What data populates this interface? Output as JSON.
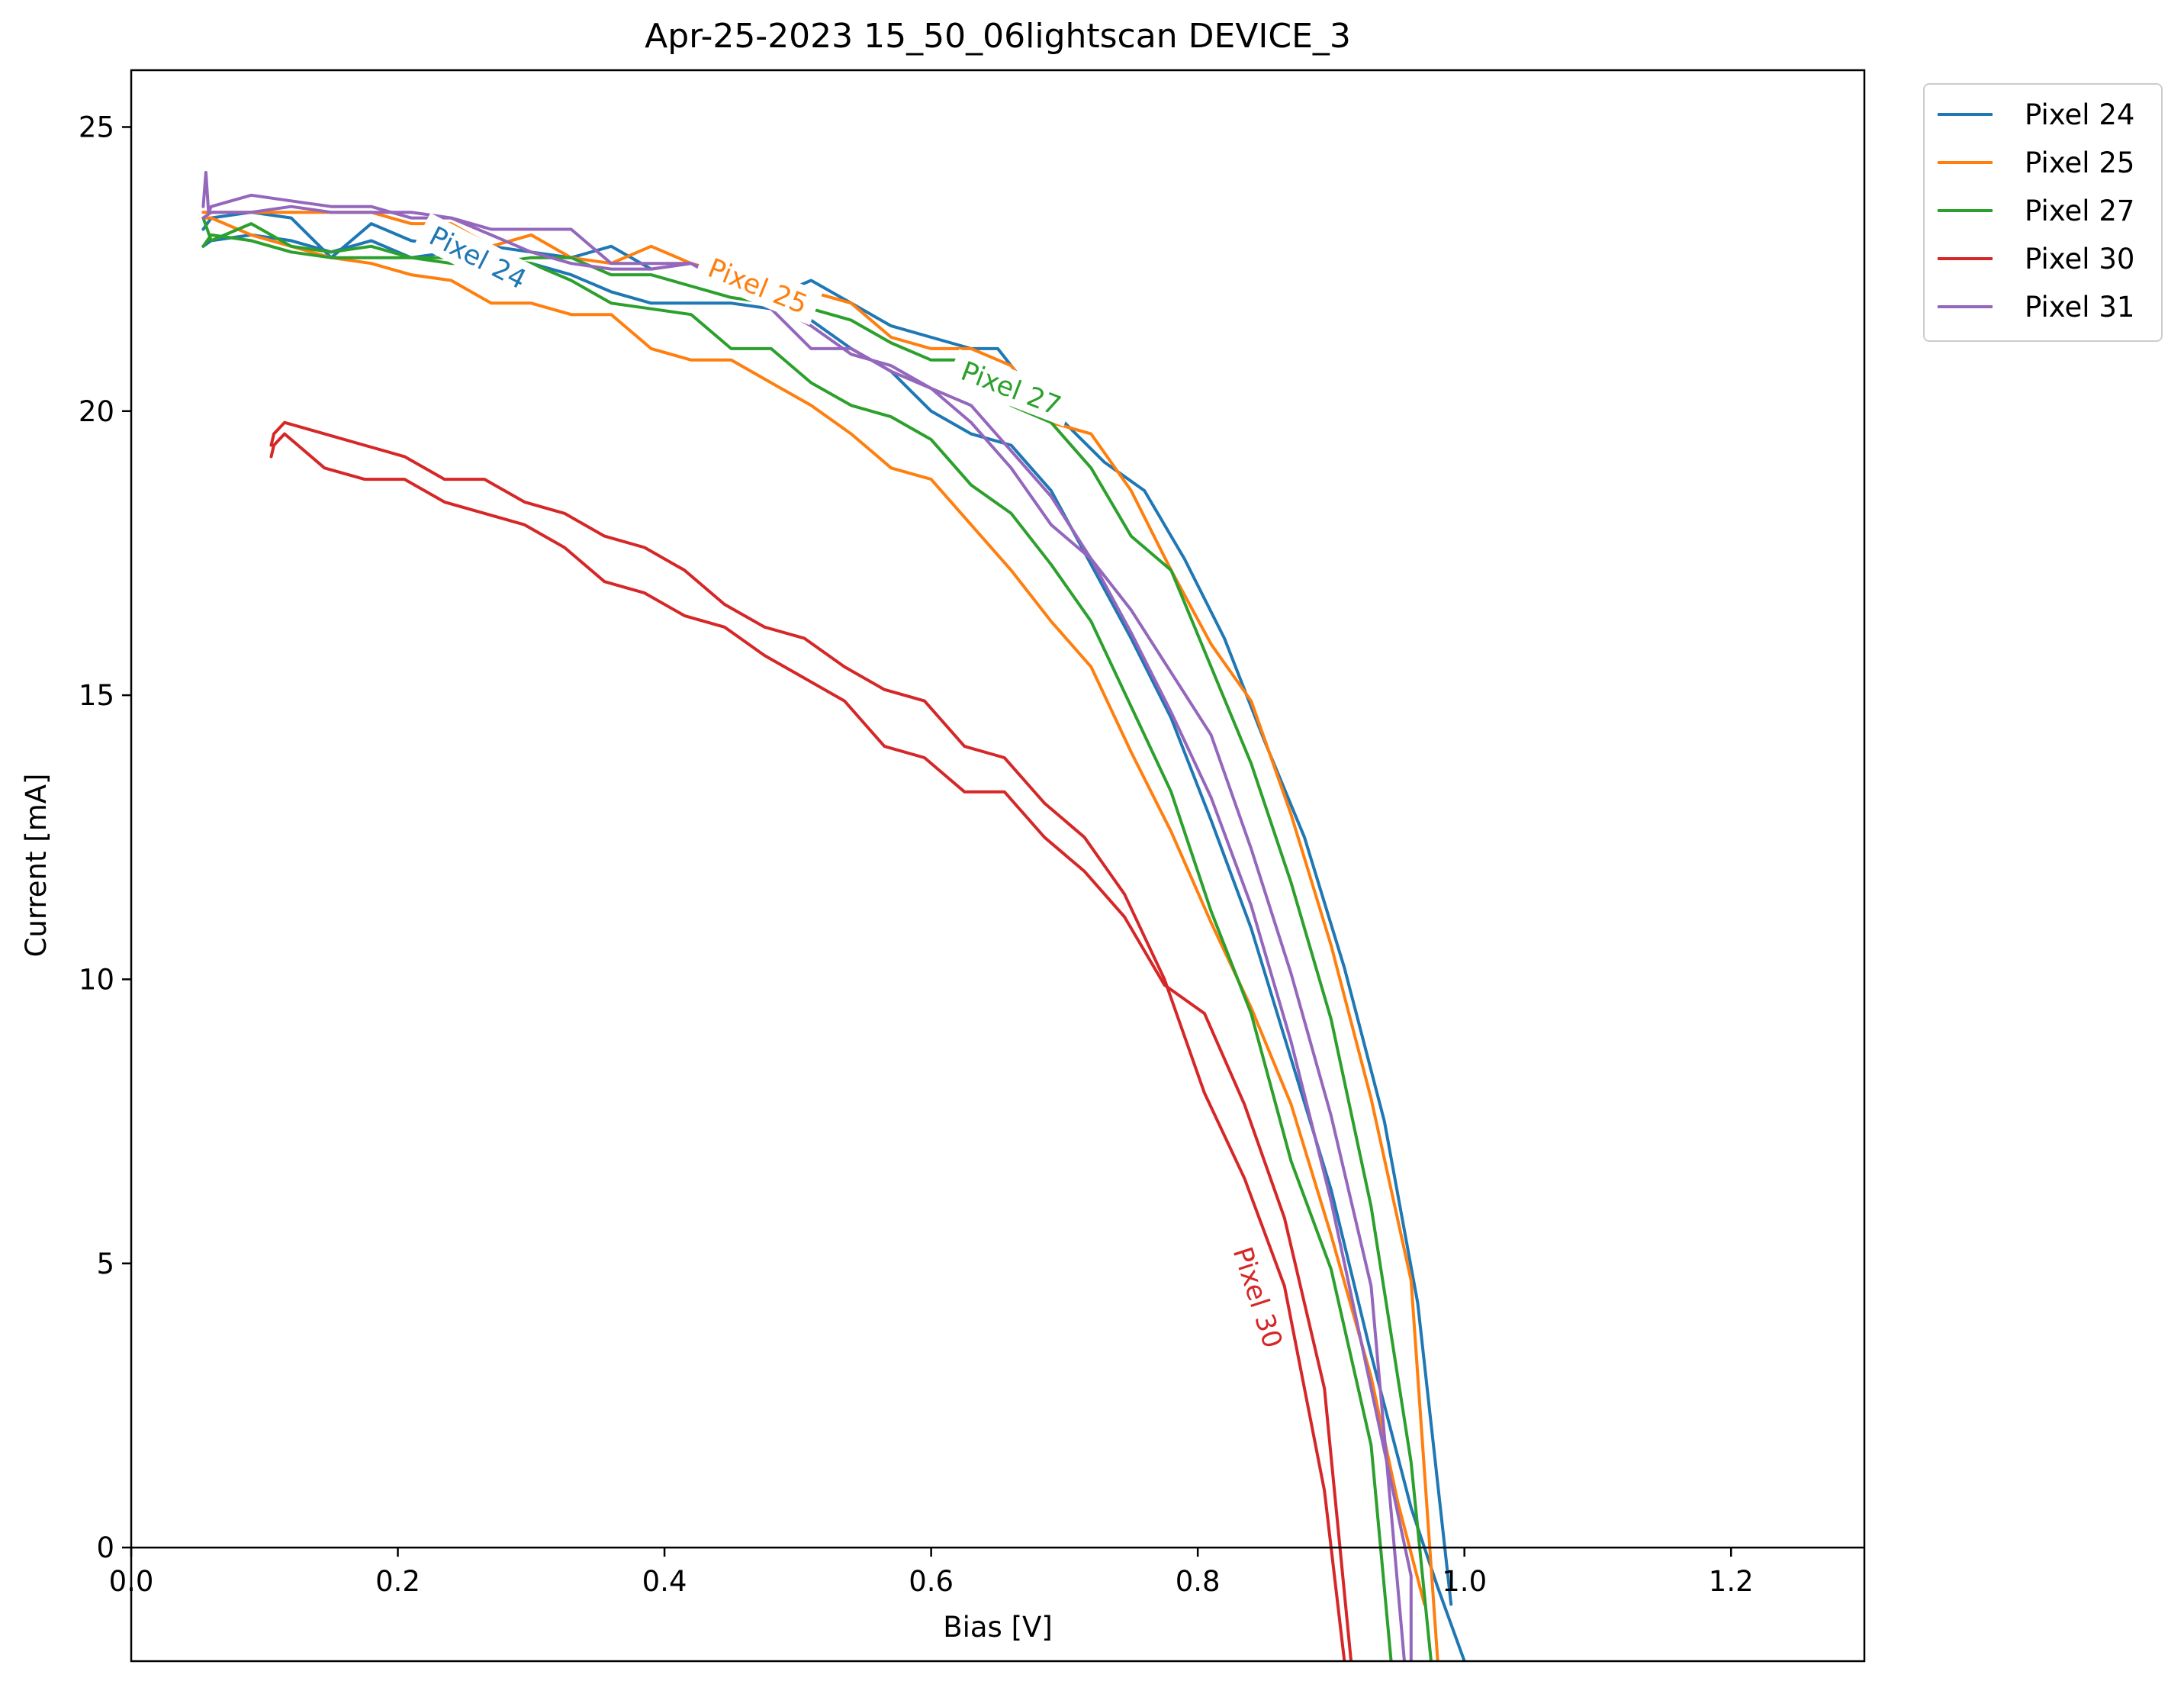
{
  "chart_data": {
    "type": "line",
    "title": "Apr-25-2023 15_50_06lightscan DEVICE_3",
    "xlabel": "Bias [V]",
    "ylabel": "Current [mA]",
    "xlim": [
      0.0,
      1.3
    ],
    "ylim": [
      -2.0,
      26.0
    ],
    "x_ticks": [
      0.0,
      0.2,
      0.4,
      0.6,
      0.8,
      1.0,
      1.2
    ],
    "x_tick_labels": [
      "0.0",
      "0.2",
      "0.4",
      "0.6",
      "0.8",
      "1.0",
      "1.2"
    ],
    "y_ticks": [
      0,
      5,
      10,
      15,
      20,
      25
    ],
    "y_tick_labels": [
      "0",
      "5",
      "10",
      "15",
      "20",
      "25"
    ],
    "zero_line": true,
    "grid": false,
    "legend_position": "outside top-right",
    "series": [
      {
        "name": "Pixel 24",
        "color": "#1f77b4",
        "inline_label": "Pixel 24",
        "segments": [
          {
            "x": [
              0.054,
              0.06,
              0.09,
              0.12,
              0.15,
              0.18,
              0.21,
              0.24,
              0.27,
              0.3,
              0.33,
              0.36,
              0.39,
              0.42,
              0.45,
              0.48,
              0.51,
              0.54,
              0.57,
              0.6,
              0.63,
              0.66,
              0.69,
              0.72,
              0.75,
              0.78,
              0.81,
              0.84,
              0.87,
              0.9,
              0.93,
              0.96,
              0.98,
              1.0
            ],
            "y": [
              22.9,
              23.0,
              23.1,
              23.0,
              22.8,
              23.0,
              22.7,
              22.8,
              22.6,
              22.6,
              22.4,
              22.1,
              21.9,
              21.9,
              21.9,
              21.8,
              21.6,
              21.1,
              20.7,
              20.0,
              19.6,
              19.4,
              18.6,
              17.3,
              16.0,
              14.6,
              12.8,
              10.9,
              8.6,
              6.3,
              3.4,
              0.7,
              -0.7,
              -2.0
            ]
          },
          {
            "x": [
              0.054,
              0.06,
              0.09,
              0.12,
              0.15,
              0.18,
              0.21,
              0.24,
              0.27,
              0.3,
              0.33,
              0.36,
              0.39,
              0.42,
              0.45,
              0.48,
              0.51,
              0.54,
              0.57,
              0.6,
              0.63,
              0.65,
              0.67,
              0.7,
              0.73,
              0.76,
              0.79,
              0.82,
              0.85,
              0.88,
              0.91,
              0.94,
              0.965,
              0.99
            ],
            "y": [
              23.2,
              23.4,
              23.5,
              23.4,
              22.7,
              23.3,
              23.0,
              22.9,
              22.9,
              22.8,
              22.7,
              22.9,
              22.5,
              22.6,
              22.3,
              22.0,
              22.3,
              21.9,
              21.5,
              21.3,
              21.1,
              21.1,
              20.5,
              19.8,
              19.1,
              18.6,
              17.4,
              16.0,
              14.2,
              12.5,
              10.2,
              7.5,
              4.3,
              -1.0
            ]
          }
        ]
      },
      {
        "name": "Pixel 25",
        "color": "#ff7f0e",
        "inline_label": "Pixel 25",
        "segments": [
          {
            "x": [
              0.054,
              0.06,
              0.09,
              0.12,
              0.15,
              0.18,
              0.21,
              0.24,
              0.27,
              0.3,
              0.33,
              0.36,
              0.39,
              0.42,
              0.45,
              0.48,
              0.51,
              0.54,
              0.57,
              0.6,
              0.63,
              0.66,
              0.69,
              0.72,
              0.75,
              0.78,
              0.81,
              0.84,
              0.87,
              0.9,
              0.93,
              0.95,
              0.97
            ],
            "y": [
              23.4,
              23.4,
              23.1,
              22.9,
              22.7,
              22.6,
              22.4,
              22.3,
              21.9,
              21.9,
              21.7,
              21.7,
              21.1,
              20.9,
              20.9,
              20.5,
              20.1,
              19.6,
              19.0,
              18.8,
              18.0,
              17.2,
              16.3,
              15.5,
              14.0,
              12.6,
              11.0,
              9.5,
              7.8,
              5.5,
              3.0,
              0.8,
              -1.0
            ]
          },
          {
            "x": [
              0.054,
              0.06,
              0.09,
              0.12,
              0.15,
              0.18,
              0.21,
              0.24,
              0.27,
              0.3,
              0.33,
              0.36,
              0.39,
              0.42,
              0.45,
              0.48,
              0.51,
              0.54,
              0.57,
              0.6,
              0.63,
              0.66,
              0.69,
              0.72,
              0.75,
              0.78,
              0.81,
              0.84,
              0.87,
              0.9,
              0.93,
              0.96,
              0.98
            ],
            "y": [
              23.5,
              23.5,
              23.5,
              23.5,
              23.5,
              23.5,
              23.3,
              23.3,
              22.9,
              23.1,
              22.7,
              22.6,
              22.9,
              22.6,
              22.4,
              22.1,
              22.1,
              21.9,
              21.3,
              21.1,
              21.1,
              20.8,
              19.8,
              19.6,
              18.6,
              17.2,
              15.9,
              14.9,
              12.9,
              10.6,
              7.9,
              4.7,
              -2.0
            ]
          }
        ]
      },
      {
        "name": "Pixel 27",
        "color": "#2ca02c",
        "inline_label": "Pixel 27",
        "segments": [
          {
            "x": [
              0.054,
              0.06,
              0.09,
              0.12,
              0.15,
              0.18,
              0.21,
              0.24,
              0.27,
              0.3,
              0.33,
              0.36,
              0.39,
              0.42,
              0.45,
              0.48,
              0.51,
              0.54,
              0.57,
              0.6,
              0.63,
              0.66,
              0.69,
              0.72,
              0.75,
              0.78,
              0.81,
              0.84,
              0.87,
              0.9,
              0.93,
              0.945
            ],
            "y": [
              22.9,
              23.1,
              23.0,
              22.8,
              22.7,
              22.7,
              22.7,
              22.7,
              22.7,
              22.6,
              22.3,
              21.9,
              21.8,
              21.7,
              21.1,
              21.1,
              20.5,
              20.1,
              19.9,
              19.5,
              18.7,
              18.2,
              17.3,
              16.3,
              14.8,
              13.3,
              11.2,
              9.4,
              6.8,
              4.9,
              1.8,
              -2.0
            ]
          },
          {
            "x": [
              0.054,
              0.06,
              0.09,
              0.12,
              0.15,
              0.18,
              0.21,
              0.24,
              0.27,
              0.3,
              0.33,
              0.36,
              0.39,
              0.42,
              0.45,
              0.48,
              0.51,
              0.54,
              0.57,
              0.6,
              0.63,
              0.66,
              0.69,
              0.72,
              0.75,
              0.78,
              0.81,
              0.84,
              0.87,
              0.9,
              0.93,
              0.96,
              0.975
            ],
            "y": [
              23.4,
              23.0,
              23.3,
              22.9,
              22.8,
              22.9,
              22.7,
              22.6,
              22.6,
              22.7,
              22.7,
              22.4,
              22.4,
              22.2,
              22.0,
              21.9,
              21.8,
              21.6,
              21.2,
              20.9,
              20.9,
              20.1,
              19.8,
              19.0,
              17.8,
              17.2,
              15.5,
              13.8,
              11.7,
              9.3,
              6.0,
              1.5,
              -2.0
            ]
          }
        ]
      },
      {
        "name": "Pixel 30",
        "color": "#d62728",
        "inline_label": "Pixel 30",
        "segments": [
          {
            "x": [
              0.105,
              0.107,
              0.115,
              0.145,
              0.175,
              0.205,
              0.235,
              0.265,
              0.295,
              0.325,
              0.355,
              0.385,
              0.415,
              0.445,
              0.475,
              0.505,
              0.535,
              0.565,
              0.595,
              0.625,
              0.655,
              0.685,
              0.715,
              0.745,
              0.775,
              0.805,
              0.835,
              0.865,
              0.895,
              0.915
            ],
            "y": [
              19.2,
              19.4,
              19.6,
              19.0,
              18.8,
              18.8,
              18.4,
              18.2,
              18.0,
              17.6,
              17.0,
              16.8,
              16.4,
              16.2,
              15.7,
              15.3,
              14.9,
              14.1,
              13.9,
              13.3,
              13.3,
              12.5,
              11.9,
              11.1,
              9.9,
              9.4,
              7.8,
              5.8,
              2.8,
              -2.0
            ]
          },
          {
            "x": [
              0.105,
              0.107,
              0.115,
              0.145,
              0.175,
              0.205,
              0.235,
              0.265,
              0.295,
              0.325,
              0.355,
              0.385,
              0.415,
              0.445,
              0.475,
              0.505,
              0.535,
              0.565,
              0.595,
              0.625,
              0.655,
              0.685,
              0.715,
              0.745,
              0.775,
              0.805,
              0.835,
              0.865,
              0.895,
              0.91
            ],
            "y": [
              19.4,
              19.6,
              19.8,
              19.6,
              19.4,
              19.2,
              18.8,
              18.8,
              18.4,
              18.2,
              17.8,
              17.6,
              17.2,
              16.6,
              16.2,
              16.0,
              15.5,
              15.1,
              14.9,
              14.1,
              13.9,
              13.1,
              12.5,
              11.5,
              10.0,
              8.0,
              6.5,
              4.6,
              1.0,
              -2.0
            ]
          }
        ]
      },
      {
        "name": "Pixel 31",
        "color": "#9467bd",
        "inline_label": "",
        "segments": [
          {
            "x": [
              0.054,
              0.056,
              0.058,
              0.06,
              0.09,
              0.12,
              0.15,
              0.18,
              0.21,
              0.24,
              0.27,
              0.3,
              0.33,
              0.36,
              0.39,
              0.42,
              0.45,
              0.48,
              0.51,
              0.54,
              0.57,
              0.6,
              0.63,
              0.66,
              0.69,
              0.72,
              0.75,
              0.78,
              0.81,
              0.84,
              0.87,
              0.9,
              0.93,
              0.96,
              0.96
            ],
            "y": [
              23.6,
              24.2,
              23.5,
              23.6,
              23.8,
              23.7,
              23.6,
              23.6,
              23.4,
              23.4,
              23.2,
              23.2,
              23.2,
              22.6,
              22.6,
              22.6,
              22.2,
              21.8,
              21.1,
              21.1,
              20.7,
              20.4,
              20.1,
              19.3,
              18.5,
              17.4,
              16.1,
              14.7,
              13.2,
              11.3,
              8.9,
              6.1,
              2.8,
              -0.5,
              -2.0
            ]
          },
          {
            "x": [
              0.054,
              0.06,
              0.09,
              0.12,
              0.15,
              0.18,
              0.21,
              0.24,
              0.27,
              0.3,
              0.33,
              0.36,
              0.39,
              0.42,
              0.45,
              0.48,
              0.51,
              0.54,
              0.57,
              0.6,
              0.63,
              0.66,
              0.69,
              0.72,
              0.75,
              0.78,
              0.81,
              0.84,
              0.87,
              0.9,
              0.93,
              0.955
            ],
            "y": [
              23.4,
              23.5,
              23.5,
              23.6,
              23.5,
              23.5,
              23.5,
              23.4,
              23.1,
              22.8,
              22.6,
              22.5,
              22.5,
              22.6,
              22.3,
              21.9,
              21.5,
              21.0,
              20.8,
              20.4,
              19.8,
              19.0,
              18.0,
              17.4,
              16.5,
              15.4,
              14.3,
              12.3,
              10.1,
              7.6,
              4.6,
              -2.0
            ]
          }
        ]
      }
    ],
    "inline_label_positions": [
      {
        "series": "Pixel 24",
        "x": 0.26,
        "y": 22.7,
        "angle": 27
      },
      {
        "series": "Pixel 25",
        "x": 0.47,
        "y": 22.2,
        "angle": 22
      },
      {
        "series": "Pixel 27",
        "x": 0.66,
        "y": 20.4,
        "angle": 21
      },
      {
        "series": "Pixel 30",
        "x": 0.845,
        "y": 4.4,
        "angle": 72
      }
    ]
  }
}
